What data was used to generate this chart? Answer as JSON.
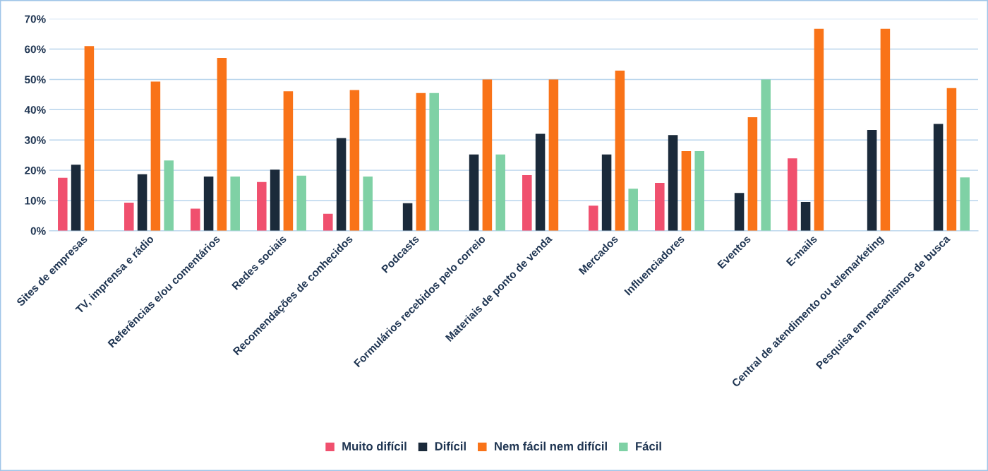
{
  "chart_data": {
    "type": "bar",
    "categories": [
      "Sites de empresas",
      "TV, imprensa e rádio",
      "Referências e/ou comentários",
      "Redes sociais",
      "Recomendações de conhecidos",
      "Podcasts",
      "Formulários recebidos pelo correio",
      "Materiais de ponto de venda",
      "Mercados",
      "Influenciadores",
      "Eventos",
      "E-mails",
      "Central de atendimento ou telemarketing",
      "Pesquisa em mecanismos de busca"
    ],
    "series": [
      {
        "name": "Muito difícil",
        "color": "#f0506e",
        "values": [
          17.5,
          9.3,
          7.3,
          16.1,
          5.6,
          null,
          null,
          18.4,
          8.3,
          15.8,
          null,
          23.9,
          null,
          null
        ]
      },
      {
        "name": "Difícil",
        "color": "#1b2a3a",
        "values": [
          21.8,
          18.7,
          17.9,
          20.2,
          30.6,
          9.1,
          25.2,
          32.0,
          25.2,
          31.6,
          12.5,
          9.5,
          33.3,
          35.3
        ]
      },
      {
        "name": "Nem fácil nem difícil",
        "color": "#f97318",
        "values": [
          61.0,
          49.3,
          57.1,
          46.1,
          46.5,
          45.5,
          50.0,
          50.0,
          52.9,
          26.3,
          37.5,
          66.7,
          66.7,
          47.1
        ]
      },
      {
        "name": "Fácil",
        "color": "#7fd1a5",
        "values": [
          null,
          23.2,
          17.9,
          18.2,
          17.9,
          45.5,
          25.2,
          null,
          13.9,
          26.3,
          50.0,
          null,
          null,
          17.6
        ]
      }
    ],
    "ylim": [
      0,
      70
    ],
    "yticks": [
      {
        "value": 0,
        "label": "0%"
      },
      {
        "value": 10,
        "label": "10%"
      },
      {
        "value": 20,
        "label": "20%"
      },
      {
        "value": 30,
        "label": "30%"
      },
      {
        "value": 40,
        "label": "40%"
      },
      {
        "value": 50,
        "label": "50%"
      },
      {
        "value": 60,
        "label": "60%"
      },
      {
        "value": 70,
        "label": "70%"
      }
    ],
    "grid": "y",
    "legend": "bottom"
  }
}
